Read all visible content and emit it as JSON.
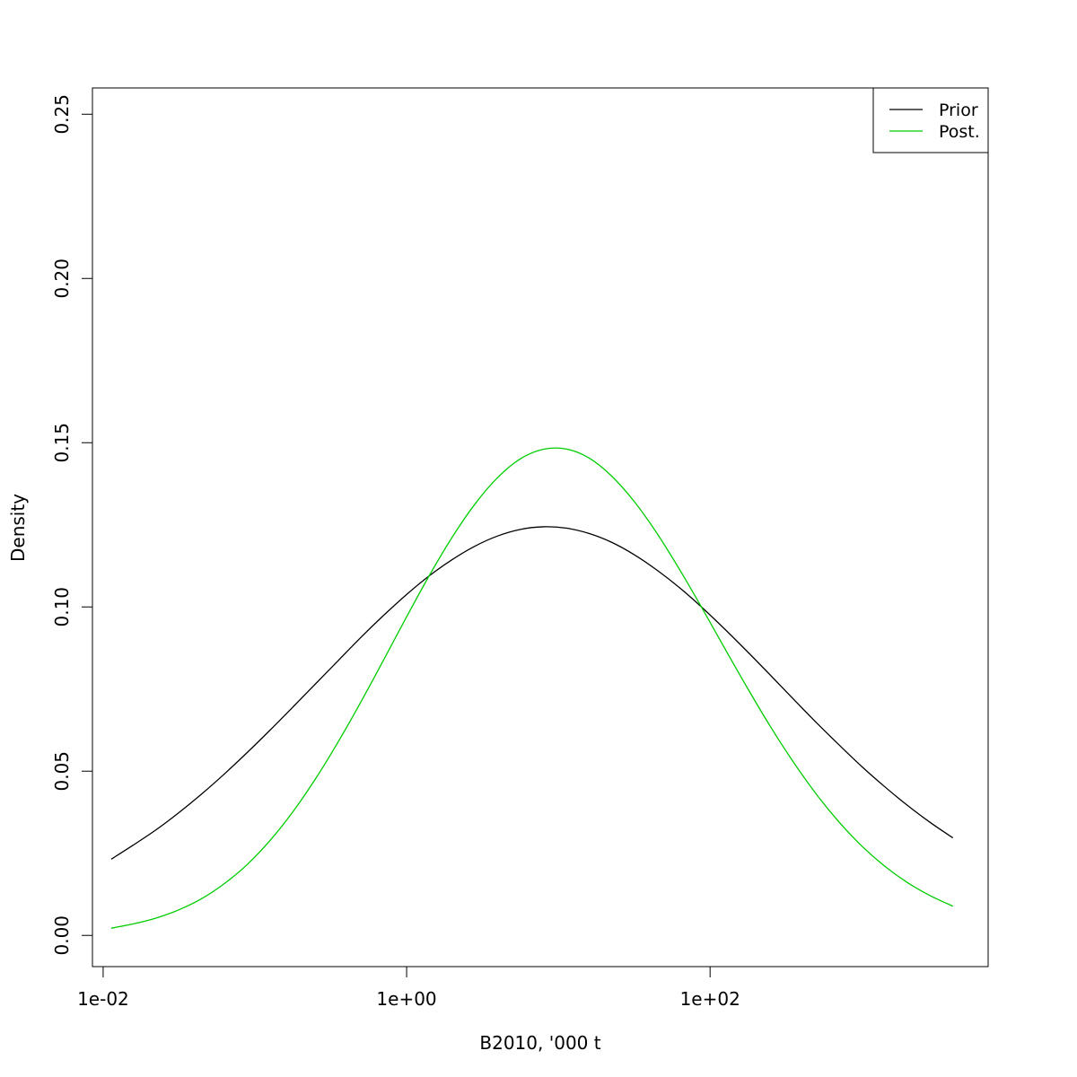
{
  "chart_data": {
    "type": "line",
    "title": "",
    "xlabel": "B2010, '000 t",
    "ylabel": "Density",
    "x_scale": "log",
    "xlim": [
      0.0085,
      6800
    ],
    "ylim": [
      -0.0095,
      0.258
    ],
    "x_ticks": [
      {
        "value": 0.01,
        "label": "1e-02"
      },
      {
        "value": 1,
        "label": "1e+00"
      },
      {
        "value": 100,
        "label": "1e+02"
      }
    ],
    "y_ticks": [
      {
        "value": 0.0,
        "label": "0.00"
      },
      {
        "value": 0.05,
        "label": "0.05"
      },
      {
        "value": 0.1,
        "label": "0.10"
      },
      {
        "value": 0.15,
        "label": "0.15"
      },
      {
        "value": 0.2,
        "label": "0.20"
      },
      {
        "value": 0.25,
        "label": "0.25"
      }
    ],
    "grid": false,
    "legend_position": "top-right",
    "series": [
      {
        "name": "Prior",
        "color": "#000000",
        "x": [
          0.0113,
          0.0158,
          0.0224,
          0.0316,
          0.0447,
          0.0631,
          0.0891,
          0.1259,
          0.1778,
          0.2512,
          0.3548,
          0.5012,
          0.7079,
          1.0,
          1.4125,
          1.9953,
          2.8184,
          3.9811,
          5.6234,
          7.9433,
          11.2202,
          15.8489,
          22.3872,
          31.6228,
          44.6684,
          63.0957,
          89.1251,
          125.8925,
          177.8279,
          251.1886,
          354.8134,
          501.1872,
          707.9458,
          1000.0,
          1412.5375,
          1995.2623,
          2818.3829,
          3981.0717
        ],
        "y": [
          0.0232,
          0.0275,
          0.0322,
          0.0374,
          0.0431,
          0.0492,
          0.0557,
          0.0625,
          0.0695,
          0.0766,
          0.0837,
          0.0908,
          0.0975,
          0.1038,
          0.1095,
          0.1144,
          0.1185,
          0.1216,
          0.1236,
          0.1244,
          0.124,
          0.1224,
          0.1197,
          0.1159,
          0.1112,
          0.1058,
          0.0997,
          0.0931,
          0.0862,
          0.0791,
          0.0719,
          0.0648,
          0.058,
          0.0514,
          0.0453,
          0.0396,
          0.0344,
          0.0297
        ]
      },
      {
        "name": "Post.",
        "color": "#00cd00",
        "x": [
          0.0113,
          0.0158,
          0.0224,
          0.0316,
          0.0447,
          0.0631,
          0.0891,
          0.1259,
          0.1778,
          0.2512,
          0.3548,
          0.5012,
          0.7079,
          1.0,
          1.4125,
          1.9953,
          2.8184,
          3.9811,
          5.6234,
          7.9433,
          11.2202,
          15.8489,
          22.3872,
          31.6228,
          44.6684,
          63.0957,
          89.1251,
          125.8925,
          177.8279,
          251.1886,
          354.8134,
          501.1872,
          707.9458,
          1000.0,
          1412.5375,
          1995.2623,
          2818.3829,
          3981.0717
        ],
        "y": [
          0.0022,
          0.0035,
          0.0053,
          0.0078,
          0.0112,
          0.0158,
          0.0216,
          0.0289,
          0.0376,
          0.0477,
          0.059,
          0.0712,
          0.084,
          0.097,
          0.1096,
          0.1212,
          0.1313,
          0.1394,
          0.1451,
          0.148,
          0.1481,
          0.1454,
          0.1399,
          0.1321,
          0.1224,
          0.1113,
          0.0994,
          0.0871,
          0.075,
          0.0634,
          0.0527,
          0.043,
          0.0345,
          0.0272,
          0.0211,
          0.0161,
          0.0121,
          0.0089
        ]
      }
    ]
  }
}
